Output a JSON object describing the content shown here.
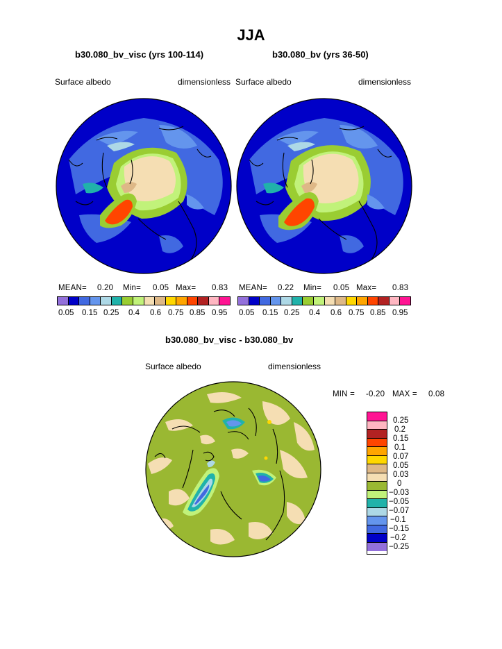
{
  "figure": {
    "title": "JJA",
    "panel_left": {
      "case_title": "b30.080_bv_visc (yrs 100-114)",
      "field_label": "Surface albedo",
      "units_label": "dimensionless",
      "stats": {
        "mean_label": "MEAN=",
        "mean": "0.20",
        "min_label": "Min=",
        "min": "0.05",
        "max_label": "Max=",
        "max": "0.83"
      }
    },
    "panel_right": {
      "case_title": "b30.080_bv (yrs 36-50)",
      "field_label": "Surface albedo",
      "units_label": "dimensionless",
      "stats": {
        "mean_label": "MEAN=",
        "mean": "0.22",
        "min_label": "Min=",
        "min": "0.05",
        "max_label": "Max=",
        "max": "0.83"
      }
    },
    "panel_diff": {
      "case_title": "b30.080_bv_visc - b30.080_bv",
      "field_label": "Surface albedo",
      "units_label": "dimensionless",
      "stats": {
        "min_label": "MIN =",
        "min": "-0.20",
        "max_label": "MAX =",
        "max": "0.08"
      }
    },
    "colorbar_main": {
      "colors": [
        "#9370db",
        "#0000c8",
        "#4169e1",
        "#6495ed",
        "#add8e6",
        "#20b2aa",
        "#9acd32",
        "#c1f27a",
        "#f5deb3",
        "#deb887",
        "#ffd700",
        "#ffa500",
        "#ff4500",
        "#b22222",
        "#ffb6c1",
        "#ff1493"
      ],
      "tick_labels": [
        "0.05",
        "0.15",
        "0.25",
        "0.4",
        "0.6",
        "0.75",
        "0.85",
        "0.95"
      ]
    },
    "colorbar_diff": {
      "colors": [
        "#ff1493",
        "#ffb6c1",
        "#b22222",
        "#ff4500",
        "#ffa500",
        "#ffd700",
        "#deb887",
        "#f5deb3",
        "#9ab832",
        "#c1f27a",
        "#20b2aa",
        "#add8e6",
        "#6495ed",
        "#4169e1",
        "#0000c8",
        "#9370db"
      ],
      "tick_labels": [
        "0.25",
        "0.2",
        "0.15",
        "0.1",
        "0.07",
        "0.05",
        "0.03",
        "0",
        "−0.03",
        "−0.05",
        "−0.07",
        "−0.1",
        "−0.15",
        "−0.2",
        "−0.25"
      ]
    }
  }
}
